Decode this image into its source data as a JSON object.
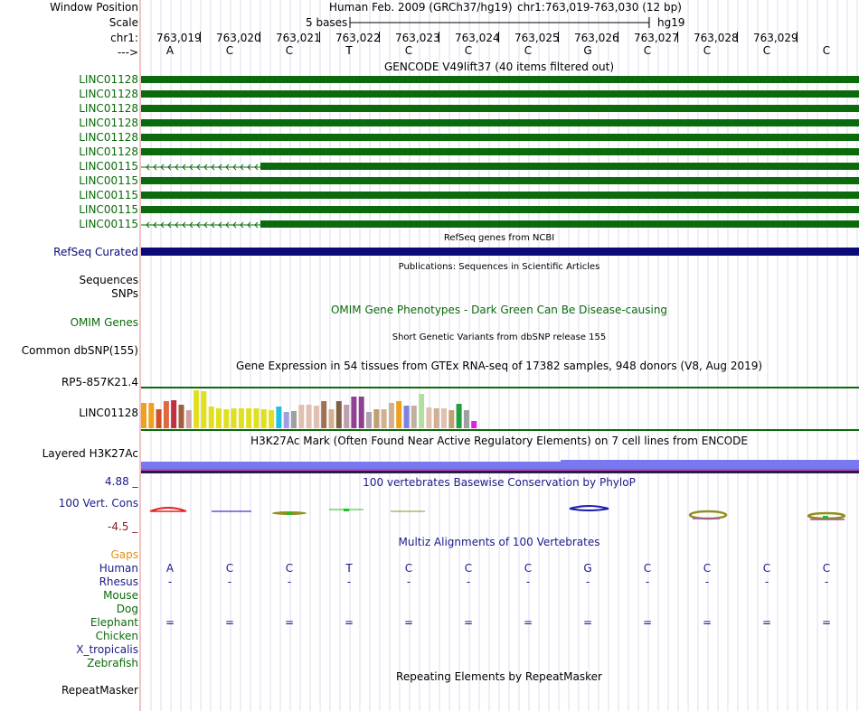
{
  "header": {
    "window_position_label": "Window Position",
    "scale_label": "Scale",
    "chrom_label": "chr1:",
    "strand_label": "--->",
    "assembly_text": "Human Feb. 2009 (GRCh37/hg19)",
    "position_text": "chr1:763,019-763,030 (12 bp)",
    "scale_text": "5 bases",
    "scale_db": "hg19"
  },
  "ruler": {
    "positions": [
      "763,019",
      "763,020",
      "763,021",
      "763,022",
      "763,023",
      "763,024",
      "763,025",
      "763,026",
      "763,027",
      "763,028",
      "763,029"
    ],
    "bases": [
      "A",
      "C",
      "C",
      "T",
      "C",
      "C",
      "C",
      "G",
      "C",
      "C",
      "C",
      "C"
    ]
  },
  "tracks": {
    "gencode": {
      "title": "GENCODE V49lift37 (40 items filtered out)",
      "genes": [
        "LINC01128",
        "LINC01128",
        "LINC01128",
        "LINC01128",
        "LINC01128",
        "LINC01128",
        "LINC00115",
        "LINC00115",
        "LINC00115",
        "LINC00115",
        "LINC00115"
      ],
      "color": "#0b6a0b"
    },
    "refseq": {
      "title": "RefSeq genes from NCBI",
      "label": "RefSeq Curated",
      "color": "#0a0a78"
    },
    "publications": {
      "title": "Publications: Sequences in Scientific Articles",
      "label_1": "Sequences",
      "label_2": "SNPs"
    },
    "omim": {
      "title": "OMIM Gene Phenotypes - Dark Green Can Be Disease-causing",
      "label": "OMIM Genes"
    },
    "dbsnp": {
      "title": "Short Genetic Variants from dbSNP release 155",
      "label": "Common dbSNP(155)"
    },
    "gtex": {
      "title": "Gene Expression in 54 tissues from GTEx RNA-seq of 17382 samples, 948 donors (V8, Aug 2019)",
      "gene_1": "RP5-857K21.4",
      "gene_2": "LINC01128"
    },
    "h3k27ac": {
      "title": "H3K27Ac Mark (Often Found Near Active Regulatory Elements) on 7 cell lines from ENCODE",
      "label": "Layered H3K27Ac"
    },
    "phylop": {
      "title": "100 vertebrates Basewise Conservation by PhyloP",
      "label": "100 Vert. Cons",
      "max": "4.88 _",
      "min": "-4.5 _"
    },
    "multiz": {
      "title": "Multiz Alignments of 100 Vertebrates",
      "gaps_label": "Gaps",
      "species": [
        "Human",
        "Rhesus",
        "Mouse",
        "Dog",
        "Elephant",
        "Chicken",
        "X_tropicalis",
        "Zebrafish"
      ],
      "rhesus_mark": "-",
      "elephant_mark": "="
    },
    "repeatmasker": {
      "title": "Repeating Elements by RepeatMasker",
      "label": "RepeatMasker"
    }
  }
}
